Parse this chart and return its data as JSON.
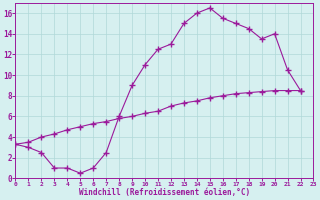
{
  "curve1_x": [
    0,
    1,
    2,
    3,
    4,
    5,
    6,
    7,
    8,
    9,
    10,
    11,
    12,
    13,
    14,
    15,
    16,
    17,
    18,
    19,
    20,
    21,
    22
  ],
  "curve1_y": [
    3.3,
    3.0,
    2.5,
    1.0,
    1.0,
    0.5,
    1.0,
    2.5,
    6.0,
    9.0,
    11.0,
    12.5,
    13.0,
    15.0,
    16.0,
    16.5,
    15.5,
    15.0,
    14.5,
    13.5,
    14.0,
    10.5,
    8.5
  ],
  "curve2_x": [
    0,
    1,
    2,
    3,
    4,
    5,
    6,
    7,
    8,
    9,
    10,
    11,
    12,
    13,
    14,
    15,
    16,
    17,
    18,
    19,
    20,
    21,
    22
  ],
  "curve2_y": [
    3.3,
    3.5,
    4.0,
    4.3,
    4.7,
    5.0,
    5.3,
    5.5,
    5.8,
    6.0,
    6.3,
    6.5,
    7.0,
    7.3,
    7.5,
    7.8,
    8.0,
    8.2,
    8.3,
    8.4,
    8.5,
    8.5,
    8.5
  ],
  "color": "#9b1a9b",
  "bg_color": "#d6f0f0",
  "grid_color": "#b0d8d8",
  "xlabel": "Windchill (Refroidissement éolien,°C)",
  "xlim": [
    0,
    23
  ],
  "ylim": [
    0,
    17
  ],
  "xticks": [
    0,
    1,
    2,
    3,
    4,
    5,
    6,
    7,
    8,
    9,
    10,
    11,
    12,
    13,
    14,
    15,
    16,
    17,
    18,
    19,
    20,
    21,
    22,
    23
  ],
  "yticks": [
    0,
    2,
    4,
    6,
    8,
    10,
    12,
    14,
    16
  ]
}
